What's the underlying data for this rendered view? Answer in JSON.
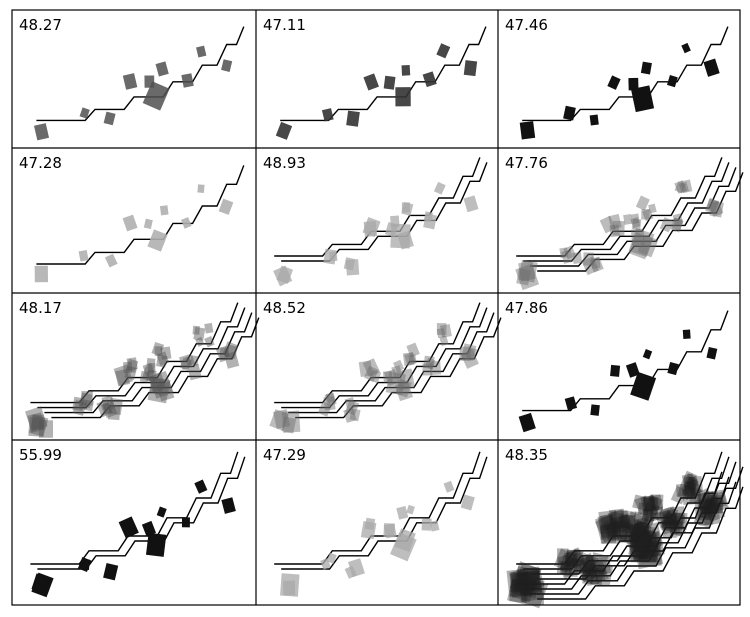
{
  "panels": [
    {
      "label": "48.27",
      "style": "grey-medium"
    },
    {
      "label": "47.11",
      "style": "grey-dark"
    },
    {
      "label": "47.46",
      "style": "black"
    },
    {
      "label": "47.28",
      "style": "grey-light"
    },
    {
      "label": "48.93",
      "style": "grey-light-double"
    },
    {
      "label": "47.76",
      "style": "grey-multi"
    },
    {
      "label": "48.17",
      "style": "grey-multi-dense"
    },
    {
      "label": "48.52",
      "style": "grey-multi"
    },
    {
      "label": "47.86",
      "style": "black"
    },
    {
      "label": "55.99",
      "style": "black-double"
    },
    {
      "label": "47.29",
      "style": "grey-light-double"
    },
    {
      "label": "48.35",
      "style": "dense-black"
    }
  ],
  "colors": {
    "line": "#000000",
    "border": "#000000",
    "background": "#ffffff"
  }
}
